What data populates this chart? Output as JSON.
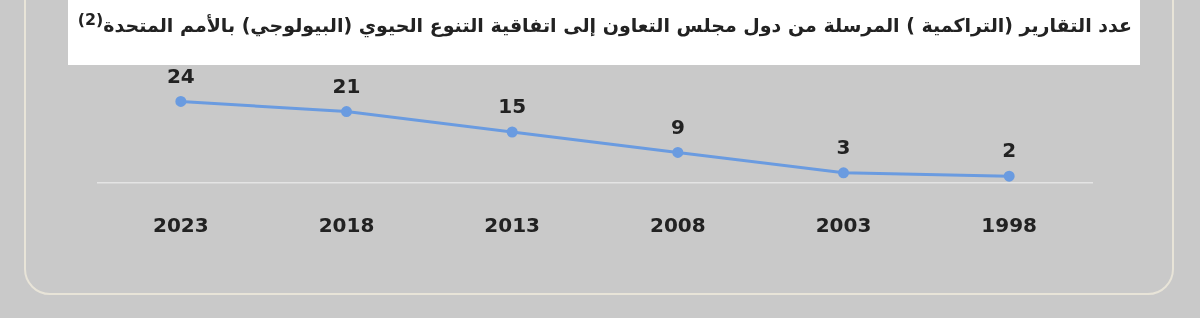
{
  "chart_data": {
    "type": "line",
    "title": "عدد التقارير (التراكمية )  المرسلة من دول مجلس التعاون إلى اتفاقية التنوع الحيوي (البيولوجي) بالأمم المتحدة$^{(2)}$",
    "categories": [
      "2023",
      "2018",
      "2013",
      "2008",
      "2003",
      "1998"
    ],
    "values": [
      24,
      21,
      15,
      9,
      3,
      2
    ],
    "color": "#6a9be0",
    "data_labels": true,
    "marker": "circle",
    "grid": false,
    "legend": false
  }
}
